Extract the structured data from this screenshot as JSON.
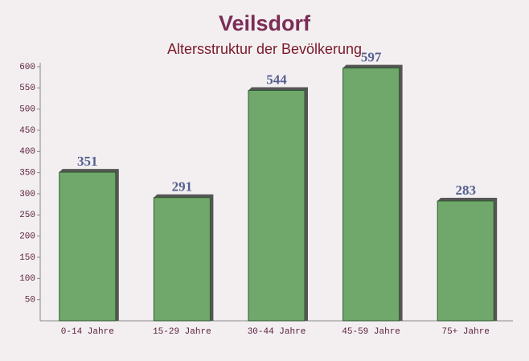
{
  "chart_data": {
    "type": "bar",
    "title": "Veilsdorf",
    "subtitle": "Altersstruktur der Bevölkerung",
    "categories": [
      "0-14 Jahre",
      "15-29 Jahre",
      "30-44 Jahre",
      "45-59 Jahre",
      "75+ Jahre"
    ],
    "values": [
      351,
      291,
      544,
      597,
      283
    ],
    "color": "#6fa86a",
    "ylim": [
      0,
      600
    ],
    "yticks": [
      50,
      100,
      150,
      200,
      250,
      300,
      350,
      400,
      450,
      500,
      550,
      600
    ],
    "grid": false
  }
}
